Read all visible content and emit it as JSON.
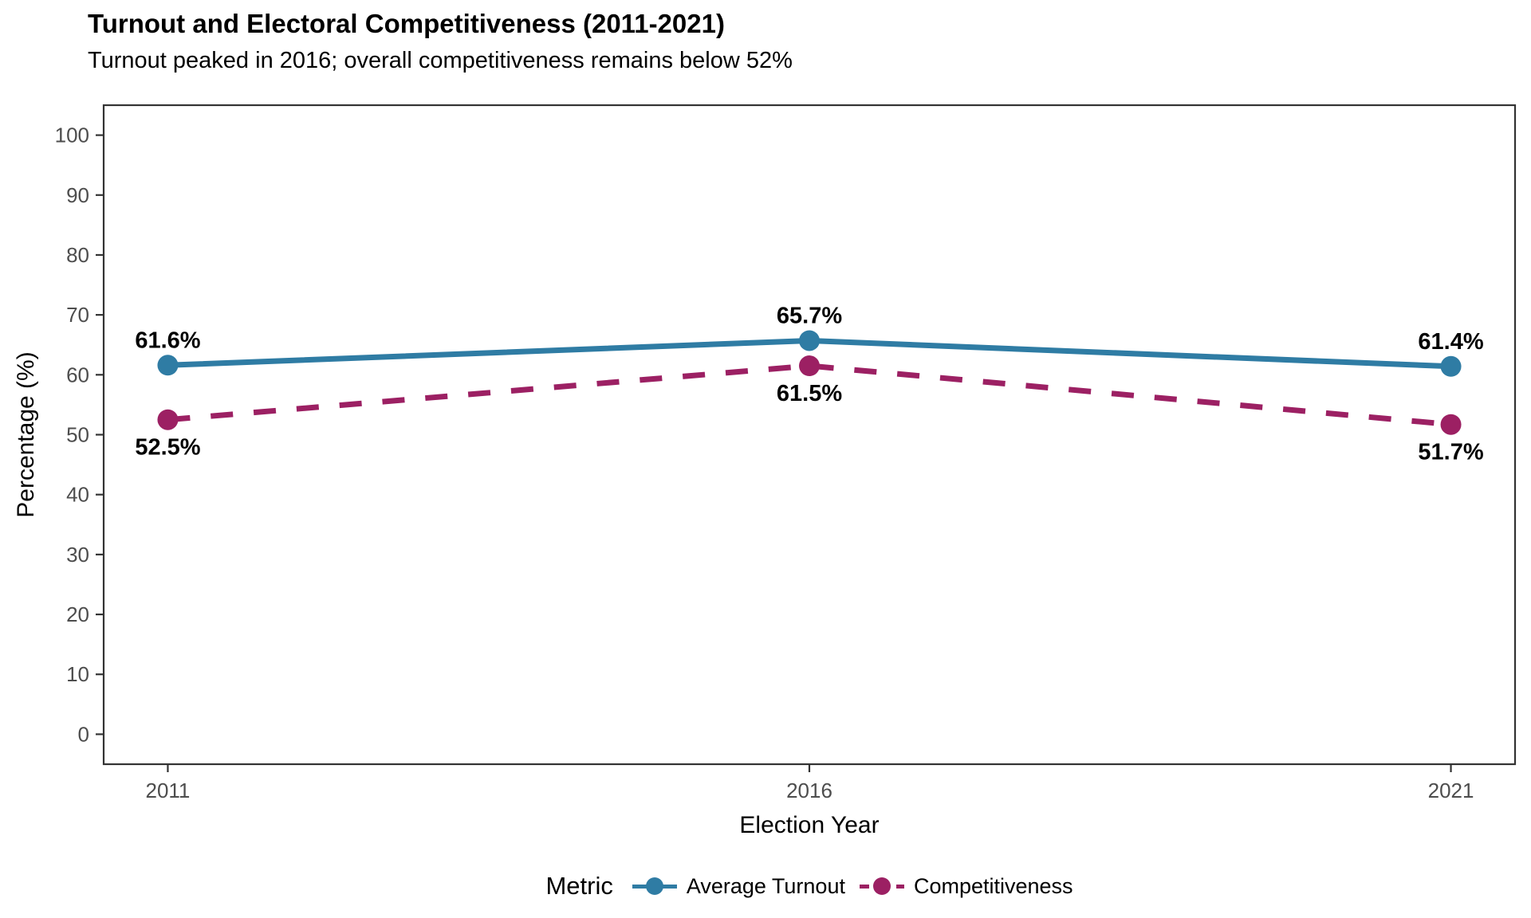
{
  "chart_data": {
    "type": "line",
    "title": "Turnout and Electoral Competitiveness (2011-2021)",
    "subtitle": "Turnout peaked in 2016; overall competitiveness remains below 52%",
    "xlabel": "Election Year",
    "ylabel": "Percentage (%)",
    "x": [
      2011,
      2016,
      2021
    ],
    "xticks": [
      "2011",
      "2016",
      "2021"
    ],
    "ylim": [
      0,
      100
    ],
    "yticks": [
      0,
      10,
      20,
      30,
      40,
      50,
      60,
      70,
      80,
      90,
      100
    ],
    "grid": false,
    "legend_title": "Metric",
    "legend_position": "bottom",
    "series": [
      {
        "name": "Average Turnout",
        "values": [
          61.6,
          65.7,
          61.4
        ],
        "labels": [
          "61.6%",
          "65.7%",
          "61.4%"
        ],
        "color": "#2F7CA4",
        "line_style": "solid",
        "label_placement": "above"
      },
      {
        "name": "Competitiveness",
        "values": [
          52.5,
          61.5,
          51.7
        ],
        "labels": [
          "52.5%",
          "61.5%",
          "51.7%"
        ],
        "color": "#9C2063",
        "line_style": "dashed",
        "label_placement": "below"
      }
    ],
    "style": {
      "background": "#FFFFFF",
      "panel_border": "#333333",
      "tick_mark": "#333333",
      "tick_label": "#4D4D4D",
      "axis_title": "#000000",
      "data_label": "#000000"
    }
  }
}
